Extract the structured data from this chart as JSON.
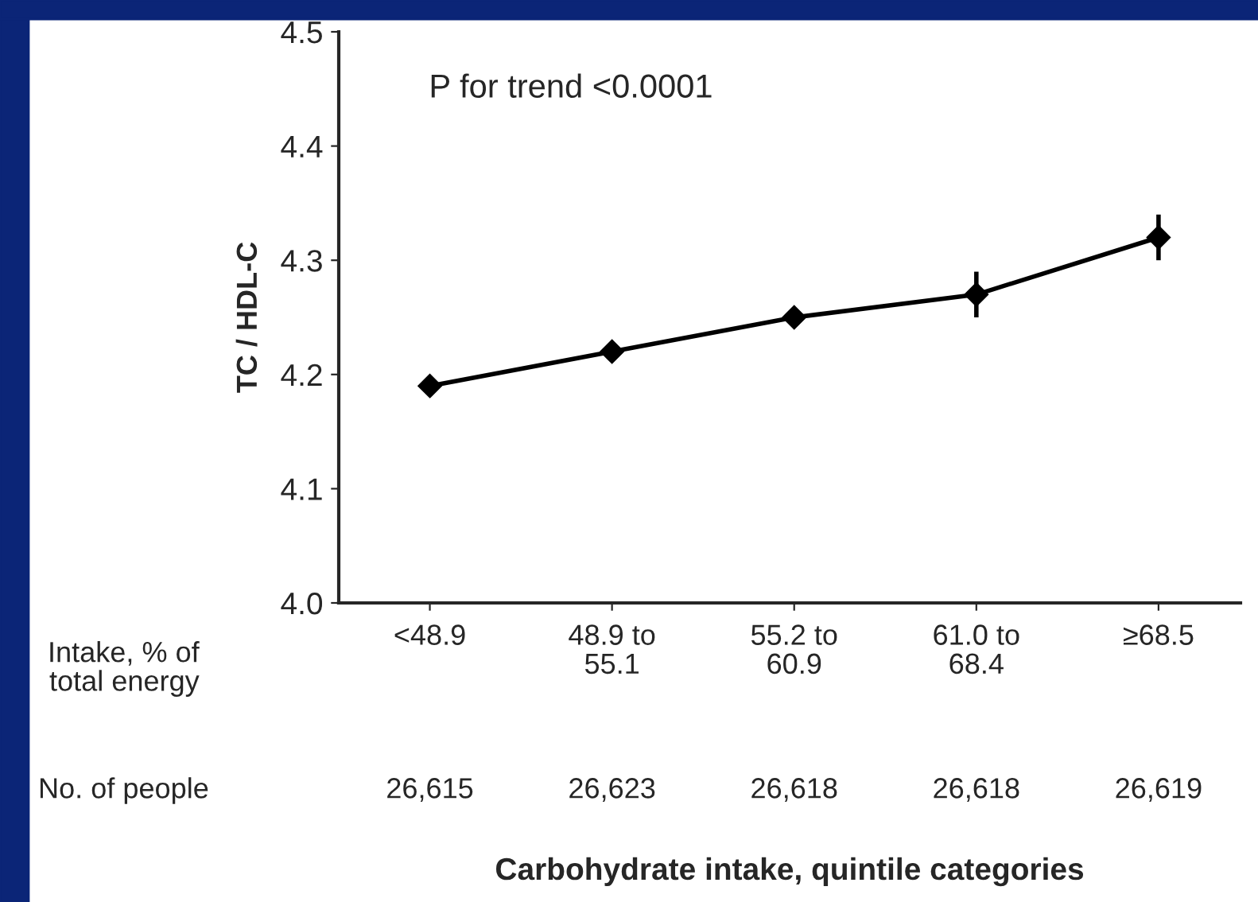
{
  "chart_data": {
    "type": "line",
    "categories": [
      "<48.9",
      "48.9 to\n55.1",
      "55.2 to\n60.9",
      "61.0 to\n68.4",
      "≥68.5"
    ],
    "series": [
      {
        "color": "#000000",
        "values": [
          4.19,
          4.22,
          4.25,
          4.27,
          4.32
        ],
        "errors": [
          null,
          null,
          null,
          0.02,
          0.02
        ]
      }
    ],
    "ylabel": "TC / HDL-C",
    "ylim": [
      4.0,
      4.5
    ],
    "yticks": [
      {
        "value": 4.0,
        "label": "4.0"
      },
      4.1,
      4.2,
      4.3,
      4.4,
      4.5
    ],
    "annotations": [
      "P for trend <0.0001",
      "Intake, % of\ntotal energy",
      "No. of people",
      "26,615",
      "26,623",
      "26,618",
      "26,618",
      "26,619",
      "Carbohydrate intake, quintile categories"
    ],
    "marker": "diamond",
    "line_style": "solid",
    "grid": false,
    "legend": false
  }
}
